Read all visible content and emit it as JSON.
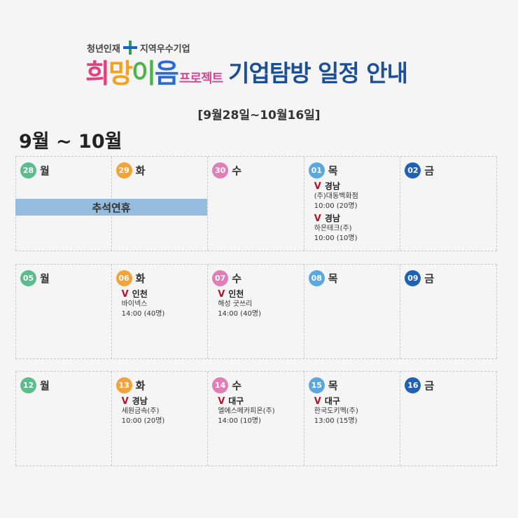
{
  "header": {
    "subtitle_left": "청년인재",
    "subtitle_right": "지역우수기업",
    "logo": [
      "희",
      "망",
      "이",
      "음"
    ],
    "project": "프로젝트",
    "title": "기업탐방 일정 안내",
    "date_range": "[9월28일~10월16일]",
    "month_range": "9월 ~ 10월"
  },
  "colors": {
    "mon": "#5cbc8b",
    "tue": "#f2a33a",
    "wed": "#e07eb8",
    "thu": "#5aa8e0",
    "fri": "#1f62b5"
  },
  "holiday": "추석연휴",
  "weeks": [
    {
      "days": [
        {
          "num": "28",
          "dow": "월",
          "events": []
        },
        {
          "num": "29",
          "dow": "화",
          "events": []
        },
        {
          "num": "30",
          "dow": "수",
          "events": []
        },
        {
          "num": "01",
          "dow": "목",
          "events": [
            {
              "check": "V",
              "region": "경남",
              "company": "(주)대동백화점",
              "time": "10:00 (20명)"
            },
            {
              "check": "V",
              "region": "경남",
              "company": "하은테크(주)",
              "time": "10:00 (10명)"
            }
          ]
        },
        {
          "num": "02",
          "dow": "금",
          "events": []
        }
      ]
    },
    {
      "days": [
        {
          "num": "05",
          "dow": "월",
          "events": []
        },
        {
          "num": "06",
          "dow": "화",
          "events": [
            {
              "check": "V",
              "region": "인천",
              "company": "바이넥스",
              "time": "14:00 (40명)"
            }
          ]
        },
        {
          "num": "07",
          "dow": "수",
          "events": [
            {
              "check": "V",
              "region": "인천",
              "company": "해성 굿쓰리",
              "time": "14:00 (40명)"
            }
          ]
        },
        {
          "num": "08",
          "dow": "목",
          "events": []
        },
        {
          "num": "09",
          "dow": "금",
          "events": []
        }
      ]
    },
    {
      "days": [
        {
          "num": "12",
          "dow": "월",
          "events": []
        },
        {
          "num": "13",
          "dow": "화",
          "events": [
            {
              "check": "V",
              "region": "경남",
              "company": "세원금속(주)",
              "time": "10:00 (20명)"
            }
          ]
        },
        {
          "num": "14",
          "dow": "수",
          "events": [
            {
              "check": "V",
              "region": "대구",
              "company": "엘에스메카피온(주)",
              "time": "14:00 (10명)"
            }
          ]
        },
        {
          "num": "15",
          "dow": "목",
          "events": [
            {
              "check": "V",
              "region": "대구",
              "company": "한국도키멕(주)",
              "time": "13:00 (15명)"
            }
          ]
        },
        {
          "num": "16",
          "dow": "금",
          "events": []
        }
      ]
    }
  ]
}
